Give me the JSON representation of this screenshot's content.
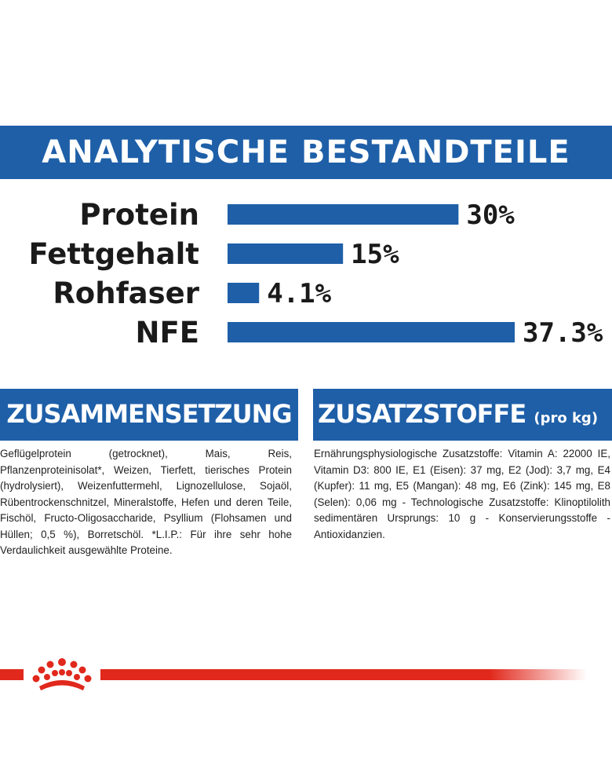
{
  "title": "ANALYTISCHE BESTANDTEILE",
  "colors": {
    "brand_blue": "#1e5fa8",
    "brand_red": "#e1281c",
    "text": "#1a1a1a"
  },
  "chart_data": {
    "type": "bar",
    "orientation": "horizontal",
    "categories": [
      "Protein",
      "Fettgehalt",
      "Rohfaser",
      "NFE"
    ],
    "values": [
      30,
      15,
      4.1,
      37.3
    ],
    "value_labels": [
      "30%",
      "15%",
      "4.1%",
      "37.3%"
    ],
    "xlim": [
      0,
      37.3
    ],
    "grid": false,
    "legend": "none",
    "color": "#1e5fa8"
  },
  "composition": {
    "heading": "ZUSAMMENSETZUNG",
    "text": "Geflügelprotein (getrocknet), Mais, Reis, Pflanzenproteinisolat*, Weizen, Tierfett, tierisches Protein (hydrolysiert), Weizenfuttermehl, Lignozellulose, Sojaöl, Rübentrockenschnitzel, Mineralstoffe, Hefen und deren Teile, Fischöl, Fructo-Oligosaccharide, Psyllium (Flohsamen und Hüllen; 0,5 %), Borretschöl. *L.I.P.: Für ihre sehr hohe Verdaulichkeit ausgewählte Proteine."
  },
  "additives": {
    "heading": "ZUSATZSTOFFE",
    "heading_sub": "(pro kg)",
    "text": "Ernährungsphysiologische Zusatzstoffe: Vitamin A: 22000 IE, Vitamin D3: 800 IE, E1 (Eisen): 37 mg, E2 (Jod): 3,7 mg, E4 (Kupfer): 11 mg, E5 (Mangan): 48 mg, E6 (Zink): 145 mg, E8 (Selen): 0,06 mg - Technologische Zusatzstoffe: Klinoptilolith sedimentären Ursprungs: 10 g - Konservierungsstoffe - Antioxidanzien."
  },
  "logo": {
    "icon": "royal-canin-crown-icon"
  }
}
